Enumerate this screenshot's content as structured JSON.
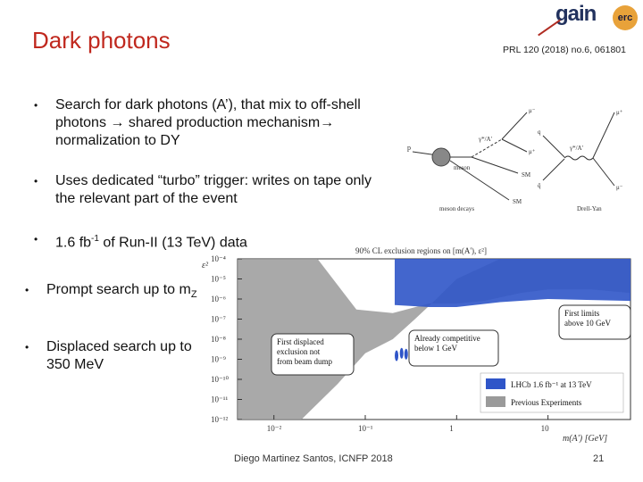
{
  "slide": {
    "title": "Dark photons",
    "reference": "PRL 120 (2018) no.6, 061801",
    "bullets": [
      {
        "text": "Search for dark photons (A’), that mix to off-shell photons → shared production mechanism→ normalization to DY"
      },
      {
        "text": "Uses dedicated “turbo” trigger: writes on tape only the relevant part of the event"
      },
      {
        "text_pre": "1.6 fb",
        "text_sup": "-1",
        "text_post": " of Run-II (13 TeV) data"
      },
      {
        "text_pre": "Prompt search up to m",
        "text_sub": "Z"
      },
      {
        "text": "Displaced search up to 350 MeV"
      }
    ],
    "footer": "Diego Martinez Santos, ICNFP 2018",
    "page_number": "21",
    "logos": {
      "gain": "gain",
      "erc": "erc"
    }
  },
  "feynman": {
    "left": {
      "p": "p",
      "gamma": "γ*/A'",
      "mu_minus": "μ⁻",
      "mu_plus": "μ⁺",
      "meson": "meson",
      "sm1": "SM",
      "sm2": "SM",
      "caption": "meson decays"
    },
    "right": {
      "gamma": "γ*/A'",
      "mu_plus": "μ⁺",
      "mu_minus": "μ⁻",
      "q": "q",
      "qbar": "q̄",
      "caption": "Drell-Yan"
    }
  },
  "chart_data": {
    "type": "area",
    "title": "90% CL exclusion regions on [m(A'), ε²]",
    "xlabel": "m(A') [GeV]",
    "ylabel": "ε²",
    "x_scale": "log",
    "y_scale": "log",
    "xlim": [
      0.004,
      80
    ],
    "ylim": [
      1e-12,
      0.0001
    ],
    "x_ticks": [
      "10⁻²",
      "10⁻¹",
      "1",
      "10"
    ],
    "y_ticks": [
      "10⁻⁴",
      "10⁻⁵",
      "10⁻⁶",
      "10⁻⁷",
      "10⁻⁸",
      "10⁻⁹",
      "10⁻¹⁰",
      "10⁻¹¹",
      "10⁻¹²"
    ],
    "series": [
      {
        "name": "Previous Experiments",
        "color": "#9a9a9a",
        "upper_boundary": [
          [
            0.004,
            0.0001
          ],
          [
            0.01,
            0.0001
          ],
          [
            0.03,
            0.0001
          ],
          [
            0.08,
            3e-07
          ],
          [
            0.2,
            2e-07
          ],
          [
            0.5,
            6e-07
          ],
          [
            1,
            6e-07
          ],
          [
            2,
            8e-07
          ],
          [
            5,
            2e-06
          ],
          [
            10,
            3e-06
          ],
          [
            30,
            3e-06
          ],
          [
            80,
            2e-06
          ]
        ],
        "lower_boundary": [
          [
            0.004,
            1e-12
          ],
          [
            0.02,
            1e-12
          ],
          [
            0.05,
            6e-11
          ],
          [
            0.1,
            2e-09
          ],
          [
            0.2,
            1e-08
          ],
          [
            0.35,
            1e-07
          ],
          [
            0.6,
            1e-06
          ],
          [
            1,
            1e-05
          ],
          [
            3,
            0.0001
          ],
          [
            80,
            0.0001
          ]
        ]
      },
      {
        "name": "LHCb 1.6 fb⁻¹ at 13 TeV",
        "color": "#2f55c8",
        "upper_boundary": [
          [
            0.21,
            5e-07
          ],
          [
            0.5,
            4e-07
          ],
          [
            1,
            4e-07
          ],
          [
            3,
            7e-07
          ],
          [
            10,
            1e-06
          ],
          [
            80,
            8e-07
          ]
        ],
        "lower_boundary": [
          [
            0.21,
            0.0001
          ],
          [
            80,
            0.0001
          ]
        ]
      },
      {
        "name": "LHCb displaced",
        "color": "#2f55c8",
        "islands": [
          [
            0.22,
            1.5e-09
          ],
          [
            0.25,
            2e-09
          ],
          [
            0.28,
            1.8e-09
          ]
        ]
      }
    ],
    "legend": [
      {
        "label": "LHCb 1.6 fb⁻¹ at 13 TeV",
        "color": "#2f55c8"
      },
      {
        "label": "Previous Experiments",
        "color": "#9a9a9a"
      }
    ],
    "legend_position": "bottom-right",
    "annotations": [
      {
        "text": "First displaced exclusion not from beam dump"
      },
      {
        "text": "Already competitive below 1 GeV"
      },
      {
        "text": "First limits above 10 GeV"
      }
    ]
  }
}
